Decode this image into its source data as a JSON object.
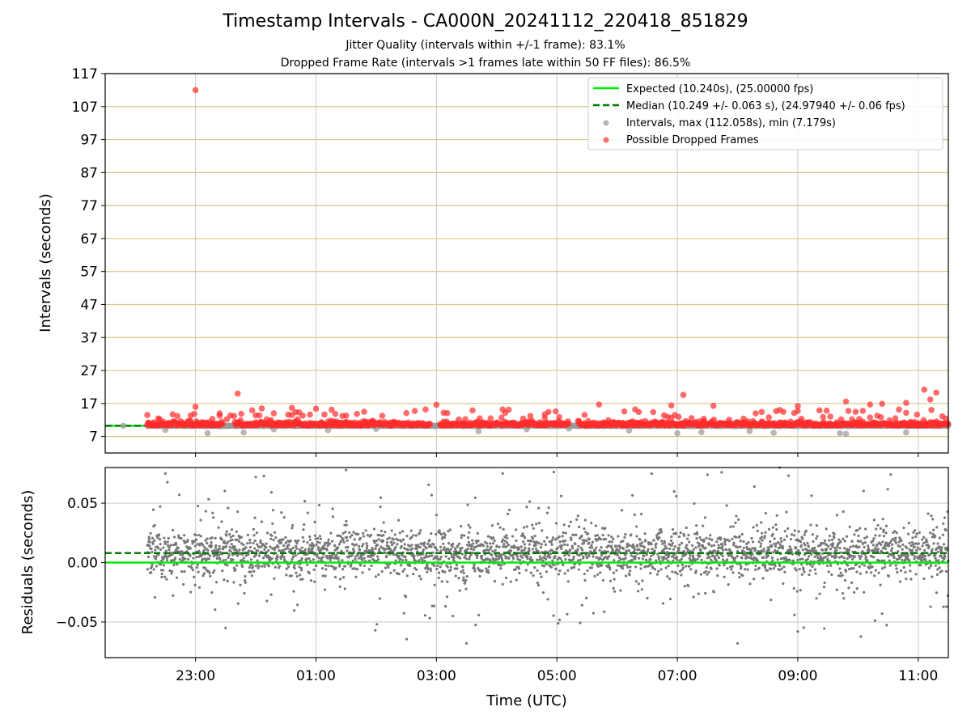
{
  "chart_data": [
    {
      "type": "scatter",
      "title": "Timestamp Intervals - CA000N_20241112_220418_851829",
      "subtitles": [
        "Jitter Quality (intervals within +/-1 frame): 83.1%",
        "Dropped Frame Rate (intervals >1 frames late within 50 FF files): 86.5%"
      ],
      "ylabel": "Intervals (seconds)",
      "xlim_hours": [
        -2.5,
        11.5
      ],
      "ylim": [
        2,
        117
      ],
      "yticks": [
        "7",
        "17",
        "27",
        "37",
        "47",
        "57",
        "67",
        "77",
        "87",
        "97",
        "107",
        "117"
      ],
      "xticks_hours": [
        -1,
        1,
        3,
        5,
        7,
        9,
        11
      ],
      "expected_interval": 10.24,
      "median_interval": 10.249,
      "legend_position": "top-right",
      "legend": [
        {
          "label": "Expected (10.240s), (25.00000 fps)",
          "style": "solid-line",
          "color": "#00ee00"
        },
        {
          "label": "Median (10.249 +/- 0.063 s), (24.97940 +/- 0.06 fps)",
          "style": "dashed-line",
          "color": "#008000"
        },
        {
          "label": "Intervals, max (112.058s), min (7.179s)",
          "style": "marker",
          "color": "#999999"
        },
        {
          "label": "Possible Dropped Frames",
          "style": "marker",
          "color": "#ff3333"
        }
      ],
      "series": [
        {
          "name": "Intervals, max (112.058s), min (7.179s)",
          "color": "#999999",
          "note": "dense band near 10.24 s",
          "points": [
            [
              -2.2,
              10.24
            ],
            [
              -1.5,
              9.0
            ],
            [
              -0.8,
              8.0
            ],
            [
              -0.2,
              8.2
            ],
            [
              0.3,
              9.2
            ],
            [
              1.2,
              8.9
            ],
            [
              2.0,
              9.3
            ],
            [
              3.7,
              8.6
            ],
            [
              4.5,
              9.2
            ],
            [
              5.2,
              9.4
            ],
            [
              6.2,
              8.8
            ],
            [
              7.0,
              8.0
            ],
            [
              7.4,
              8.3
            ],
            [
              8.2,
              8.6
            ],
            [
              8.6,
              8.1
            ],
            [
              9.7,
              8.0
            ],
            [
              9.8,
              7.8
            ],
            [
              10.8,
              8.2
            ]
          ]
        },
        {
          "name": "Possible Dropped Frames",
          "color": "#ff3333",
          "note": "dense band 10.3–12 s plus outliers",
          "points": [
            [
              -1.0,
              112.0
            ],
            [
              -0.3,
              20.0
            ],
            [
              -1.8,
              13.5
            ],
            [
              -1.3,
              13.2
            ],
            [
              -1.0,
              16.0
            ],
            [
              0.1,
              15.5
            ],
            [
              -0.6,
              14.0
            ],
            [
              0.6,
              15.7
            ],
            [
              1.0,
              15.4
            ],
            [
              1.8,
              14.5
            ],
            [
              2.5,
              14.1
            ],
            [
              3.0,
              16.6
            ],
            [
              3.6,
              14.9
            ],
            [
              4.1,
              15.2
            ],
            [
              4.8,
              13.7
            ],
            [
              5.7,
              16.7
            ],
            [
              6.3,
              15.2
            ],
            [
              6.9,
              16.4
            ],
            [
              7.1,
              19.6
            ],
            [
              7.6,
              16.3
            ],
            [
              8.3,
              14.0
            ],
            [
              9.0,
              16.2
            ],
            [
              9.8,
              17.6
            ],
            [
              10.2,
              16.7
            ],
            [
              10.4,
              16.9
            ],
            [
              10.8,
              17.2
            ],
            [
              11.2,
              18.2
            ],
            [
              11.3,
              20.3
            ],
            [
              11.1,
              21.2
            ]
          ]
        }
      ]
    },
    {
      "type": "scatter",
      "xlabel": "Time (UTC)",
      "ylabel": "Residuals (seconds)",
      "xlim_hours": [
        -2.5,
        11.5
      ],
      "ylim": [
        -0.08,
        0.08
      ],
      "yticks": [
        "0.05",
        "0.00",
        "−0.05"
      ],
      "xticks": [
        "23:00",
        "01:00",
        "03:00",
        "05:00",
        "07:00",
        "09:00",
        "11:00"
      ],
      "expected_residual": 0.0,
      "median_residual": 0.008,
      "series": [
        {
          "name": "Residuals",
          "color": "#777777",
          "note": "dense cloud centred near +0.008 s with spread about +/-0.03 s",
          "points": [
            [
              -0.5,
              -0.055
            ],
            [
              1.5,
              0.078
            ],
            [
              3.5,
              -0.068
            ],
            [
              8.0,
              -0.068
            ],
            [
              9.0,
              -0.058
            ],
            [
              -1.5,
              0.075
            ],
            [
              0.0,
              0.072
            ],
            [
              4.1,
              0.075
            ],
            [
              7.5,
              0.074
            ],
            [
              8.7,
              0.08
            ],
            [
              10.4,
              -0.043
            ]
          ]
        }
      ]
    }
  ]
}
